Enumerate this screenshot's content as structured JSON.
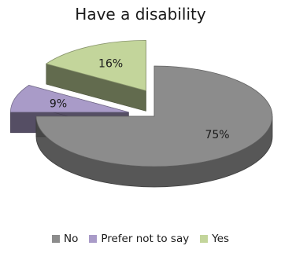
{
  "chart_data": {
    "type": "pie",
    "title": "Have a disability",
    "slices": [
      {
        "label": "No",
        "value": 75,
        "display": "75%",
        "color": "#8c8c8c"
      },
      {
        "label": "Prefer not to say",
        "value": 9,
        "display": "9%",
        "color": "#a99bc8"
      },
      {
        "label": "Yes",
        "value": 16,
        "display": "16%",
        "color": "#c3d59b"
      }
    ],
    "legend_position": "bottom",
    "style": "3d-exploded"
  }
}
